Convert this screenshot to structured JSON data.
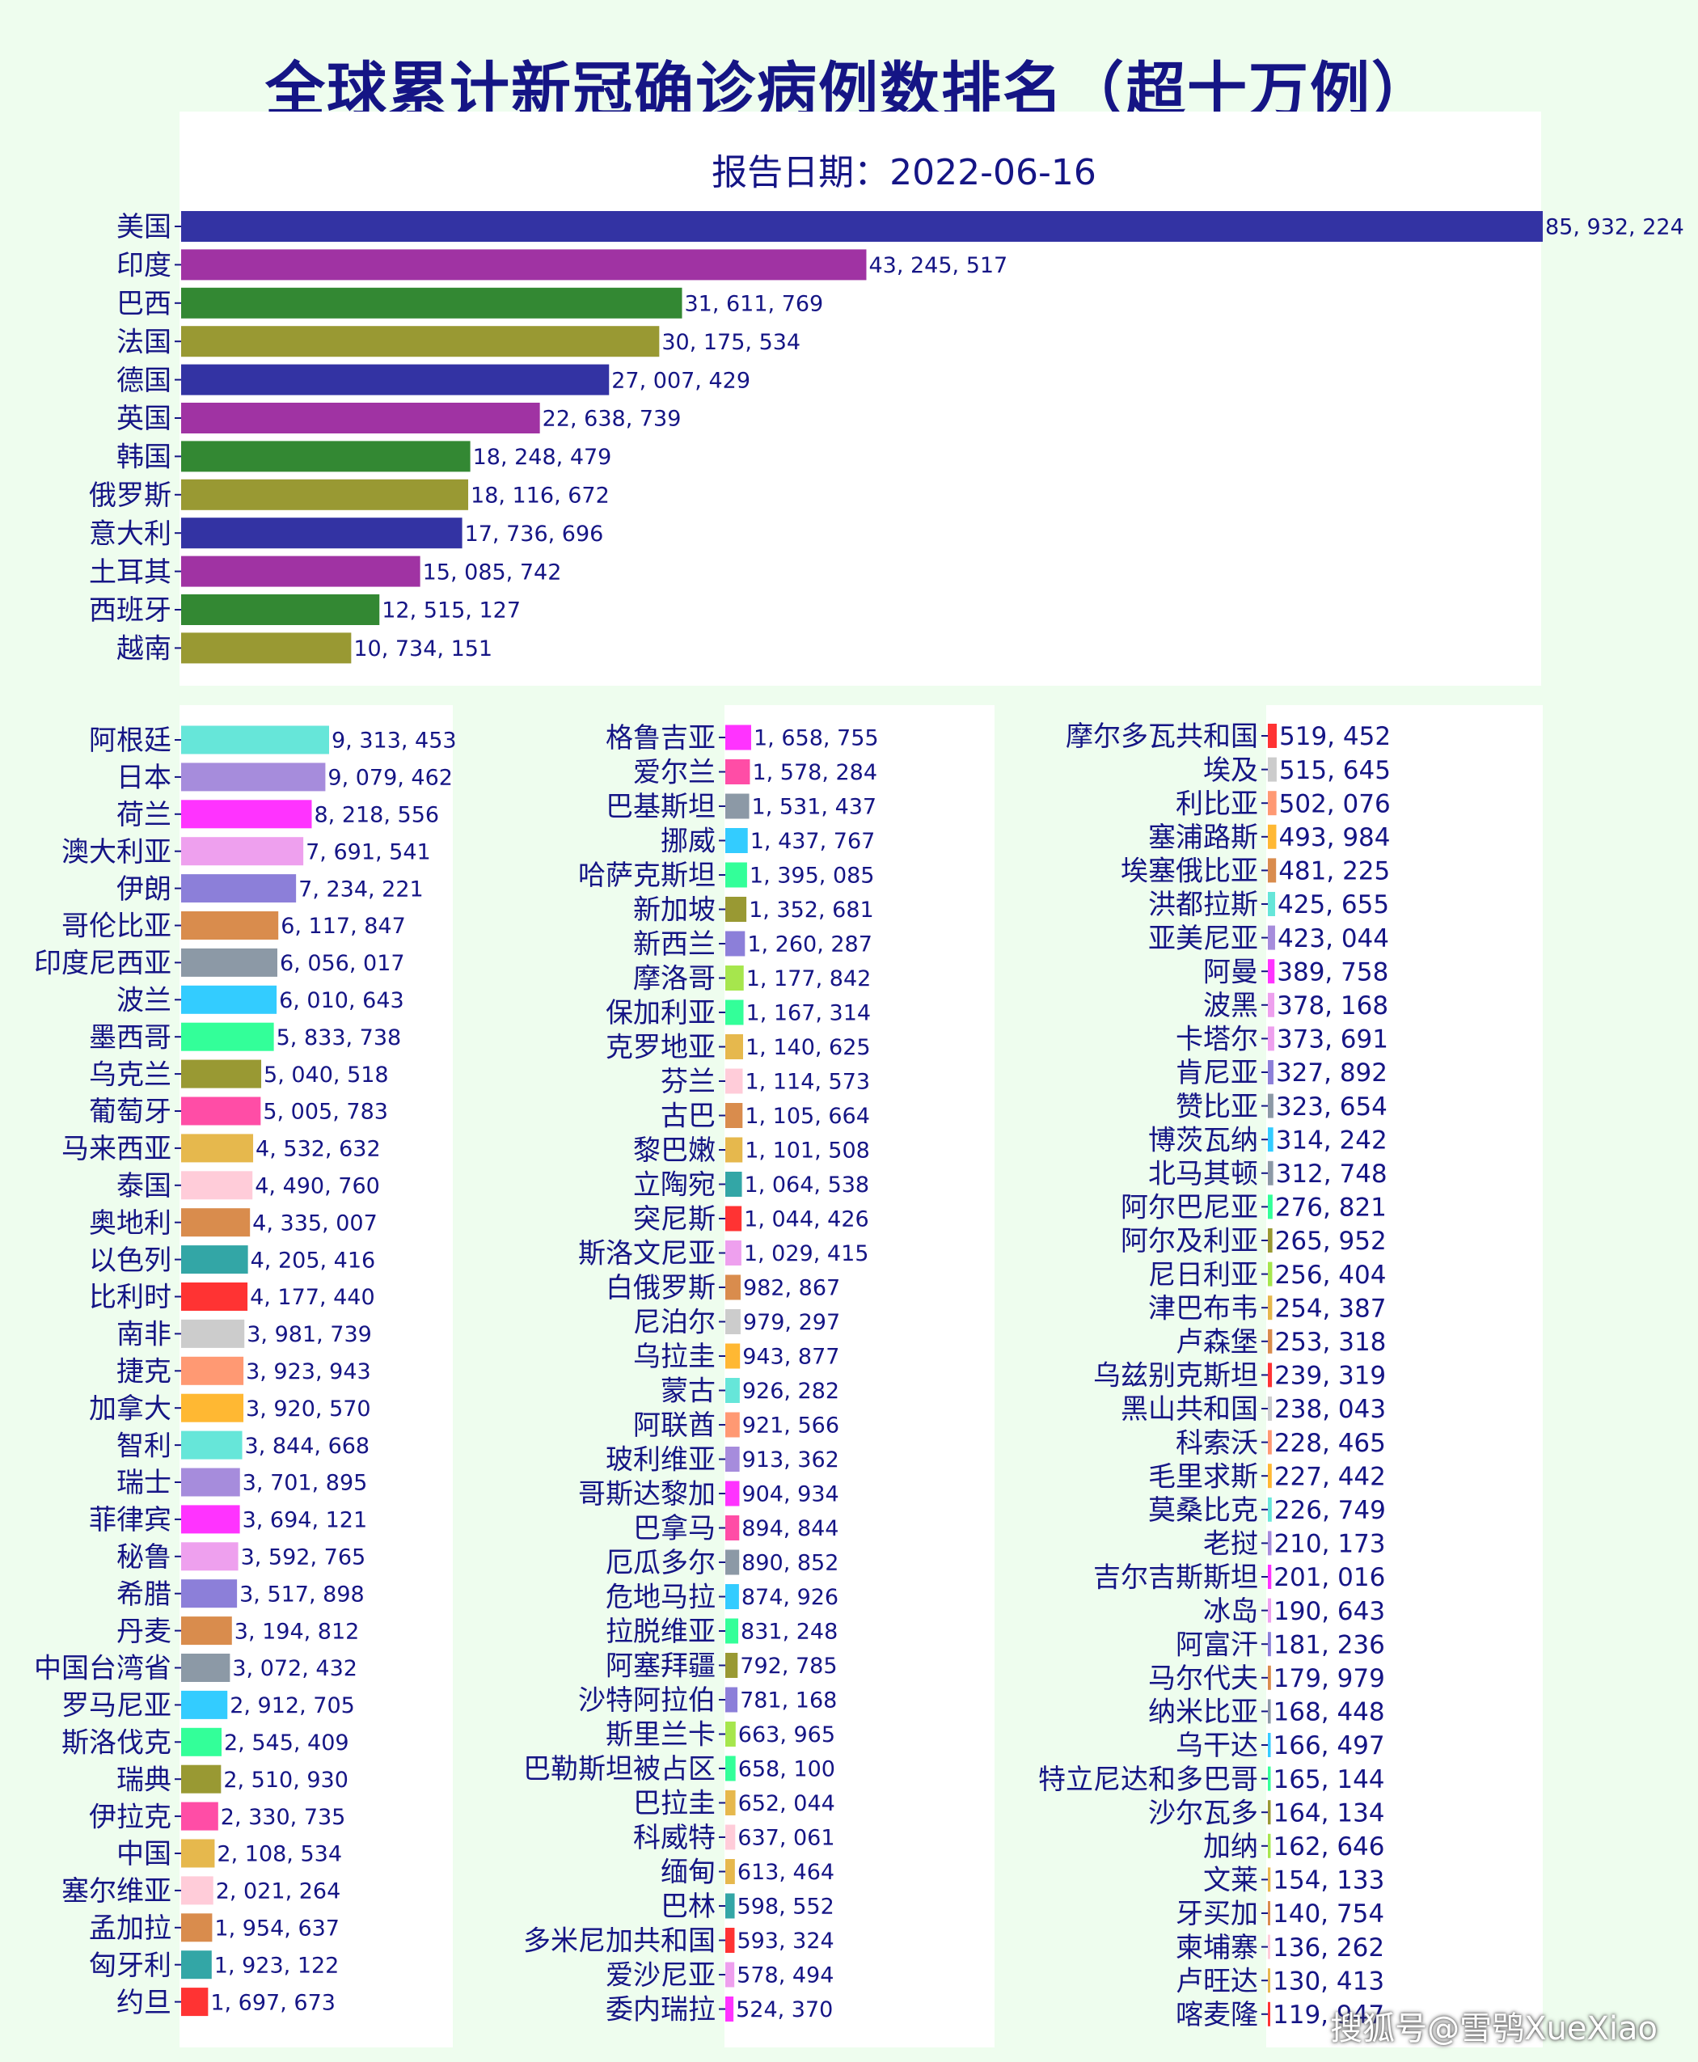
{
  "title": "全球累计新冠确诊病例数排名（超十万例）",
  "watermark": "搜狐号@雪鸮XueXiao",
  "chart_data": [
    {
      "type": "bar",
      "orientation": "horizontal",
      "subtitle": "报告日期：2022-06-16",
      "colors": [
        "#3333a3",
        "#a033a3",
        "#338833",
        "#999933"
      ],
      "categories": [
        "美国",
        "印度",
        "巴西",
        "法国",
        "德国",
        "英国",
        "韩国",
        "俄罗斯",
        "意大利",
        "土耳其",
        "西班牙",
        "越南"
      ],
      "values": [
        85932224,
        43245517,
        31611769,
        30175534,
        27007429,
        22638739,
        18248479,
        18116672,
        17736696,
        15085742,
        12515127,
        10734151
      ],
      "value_labels": [
        "85, 932, 224",
        "43, 245, 517",
        "31, 611, 769",
        "30, 175, 534",
        "27, 007, 429",
        "22, 638, 739",
        "18, 248, 479",
        "18, 116, 672",
        "17, 736, 696",
        "15, 085, 742",
        "12, 515, 127",
        "10, 734, 151"
      ]
    },
    {
      "type": "bar",
      "orientation": "horizontal",
      "colors": [
        "#66e6d9",
        "#a68cdc",
        "#ff33ff",
        "#eea0ee",
        "#8c7fd9",
        "#d98c4d",
        "#8c99a6",
        "#33ccff",
        "#33ff99",
        "#999933",
        "#ff4da6",
        "#e6b84d",
        "#ffccd9",
        "#d98c4d",
        "#33a6a6",
        "#ff3333",
        "#cccccc",
        "#ff9973",
        "#ffb833"
      ],
      "categories": [
        "阿根廷",
        "日本",
        "荷兰",
        "澳大利亚",
        "伊朗",
        "哥伦比亚",
        "印度尼西亚",
        "波兰",
        "墨西哥",
        "乌克兰",
        "葡萄牙",
        "马来西亚",
        "泰国",
        "奥地利",
        "以色列",
        "比利时",
        "南非",
        "捷克",
        "加拿大",
        "智利",
        "瑞士",
        "菲律宾",
        "秘鲁",
        "希腊",
        "丹麦",
        "中国台湾省",
        "罗马尼亚",
        "斯洛伐克",
        "瑞典",
        "伊拉克",
        "中国",
        "塞尔维亚",
        "孟加拉",
        "匈牙利",
        "约旦"
      ],
      "values": [
        9313453,
        9079462,
        8218556,
        7691541,
        7234221,
        6117847,
        6056017,
        6010643,
        5833738,
        5040518,
        5005783,
        4532632,
        4490760,
        4335007,
        4205416,
        4177440,
        3981739,
        3923943,
        3920570,
        3844668,
        3701895,
        3694121,
        3592765,
        3517898,
        3194812,
        3072432,
        2912705,
        2545409,
        2510930,
        2330735,
        2108534,
        2021264,
        1954637,
        1923122,
        1697673
      ],
      "value_labels": [
        "9, 313, 453",
        "9, 079, 462",
        "8, 218, 556",
        "7, 691, 541",
        "7, 234, 221",
        "6, 117, 847",
        "6, 056, 017",
        "6, 010, 643",
        "5, 833, 738",
        "5, 040, 518",
        "5, 005, 783",
        "4, 532, 632",
        "4, 490, 760",
        "4, 335, 007",
        "4, 205, 416",
        "4, 177, 440",
        "3, 981, 739",
        "3, 923, 943",
        "3, 920, 570",
        "3, 844, 668",
        "3, 701, 895",
        "3, 694, 121",
        "3, 592, 765",
        "3, 517, 898",
        "3, 194, 812",
        "3, 072, 432",
        "2, 912, 705",
        "2, 545, 409",
        "2, 510, 930",
        "2, 330, 735",
        "2, 108, 534",
        "2, 021, 264",
        "1, 954, 637",
        "1, 923, 122",
        "1, 697, 673"
      ]
    },
    {
      "type": "bar",
      "orientation": "horizontal",
      "colors": [
        "#ff33ff",
        "#ff4da6",
        "#8c99a6",
        "#33ccff",
        "#33ff99",
        "#999933",
        "#8c7fd9",
        "#a6e64d",
        "#33ff99",
        "#e6b84d",
        "#ffccd9",
        "#d98c4d",
        "#e6b84d",
        "#33a6a6",
        "#ff3333",
        "#eea0ee",
        "#d98c4d",
        "#cccccc",
        "#ffb833",
        "#66e6d9",
        "#ff9973",
        "#a68cdc",
        "#ff33ff",
        "#ff4da6",
        "#8c99a6",
        "#33ccff",
        "#33ff99",
        "#999933",
        "#8c7fd9",
        "#a6e64d",
        "#33ff99",
        "#e6b84d",
        "#ffccd9",
        "#e6b84d",
        "#33a6a6",
        "#ff3333",
        "#eea0ee"
      ],
      "categories": [
        "格鲁吉亚",
        "爱尔兰",
        "巴基斯坦",
        "挪威",
        "哈萨克斯坦",
        "新加坡",
        "新西兰",
        "摩洛哥",
        "保加利亚",
        "克罗地亚",
        "芬兰",
        "古巴",
        "黎巴嫩",
        "立陶宛",
        "突尼斯",
        "斯洛文尼亚",
        "白俄罗斯",
        "尼泊尔",
        "乌拉圭",
        "蒙古",
        "阿联酋",
        "玻利维亚",
        "哥斯达黎加",
        "巴拿马",
        "厄瓜多尔",
        "危地马拉",
        "拉脱维亚",
        "阿塞拜疆",
        "沙特阿拉伯",
        "斯里兰卡",
        "巴勒斯坦被占区",
        "巴拉圭",
        "科威特",
        "缅甸",
        "巴林",
        "多米尼加共和国",
        "爱沙尼亚",
        "委内瑞拉"
      ],
      "values": [
        1658755,
        1578284,
        1531437,
        1437767,
        1395085,
        1352681,
        1260287,
        1177842,
        1167314,
        1140625,
        1114573,
        1105664,
        1101508,
        1064538,
        1044426,
        1029415,
        982867,
        979297,
        943877,
        926282,
        921566,
        913362,
        904934,
        894844,
        890852,
        874926,
        831248,
        792785,
        781168,
        663965,
        658100,
        652044,
        637061,
        613464,
        598552,
        593324,
        578494,
        524370
      ],
      "value_labels": [
        "1, 658, 755",
        "1, 578, 284",
        "1, 531, 437",
        "1, 437, 767",
        "1, 395, 085",
        "1, 352, 681",
        "1, 260, 287",
        "1, 177, 842",
        "1, 167, 314",
        "1, 140, 625",
        "1, 114, 573",
        "1, 105, 664",
        "1, 101, 508",
        "1, 064, 538",
        "1, 044, 426",
        "1, 029, 415",
        "982, 867",
        "979, 297",
        "943, 877",
        "926, 282",
        "921, 566",
        "913, 362",
        "904, 934",
        "894, 844",
        "890, 852",
        "874, 926",
        "831, 248",
        "792, 785",
        "781, 168",
        "663, 965",
        "658, 100",
        "652, 044",
        "637, 061",
        "613, 464",
        "598, 552",
        "593, 324",
        "578, 494",
        "524, 370"
      ]
    },
    {
      "type": "bar",
      "orientation": "horizontal",
      "colors": [
        "#ff3333",
        "#cccccc",
        "#ff9973",
        "#ffb833",
        "#d98c4d",
        "#66e6d9",
        "#a68cdc",
        "#ff33ff",
        "#eea0ee",
        "#eea0ee",
        "#8c7fd9",
        "#8c99a6",
        "#33ccff",
        "#8c99a6",
        "#33ff99",
        "#999933",
        "#a6e64d",
        "#e6b84d",
        "#d98c4d",
        "#ff3333",
        "#cccccc",
        "#ff9973",
        "#ffb833",
        "#66e6d9",
        "#a68cdc",
        "#ff33ff",
        "#eea0ee",
        "#8c7fd9",
        "#d98c4d",
        "#8c99a6",
        "#33ccff",
        "#33ff99",
        "#999933",
        "#a6e64d",
        "#e6b84d",
        "#d98c4d",
        "#ffccd9",
        "#e6b84d",
        "#ff3333",
        "#eea0ee"
      ],
      "categories": [
        "摩尔多瓦共和国",
        "埃及",
        "利比亚",
        "塞浦路斯",
        "埃塞俄比亚",
        "洪都拉斯",
        "亚美尼亚",
        "阿曼",
        "波黑",
        "卡塔尔",
        "肯尼亚",
        "赞比亚",
        "博茨瓦纳",
        "北马其顿",
        "阿尔巴尼亚",
        "阿尔及利亚",
        "尼日利亚",
        "津巴布韦",
        "卢森堡",
        "乌兹别克斯坦",
        "黑山共和国",
        "科索沃",
        "毛里求斯",
        "莫桑比克",
        "老挝",
        "吉尔吉斯斯坦",
        "冰岛",
        "阿富汗",
        "马尔代夫",
        "纳米比亚",
        "乌干达",
        "特立尼达和多巴哥",
        "沙尔瓦多",
        "加纳",
        "文莱",
        "牙买加",
        "柬埔寨",
        "卢旺达",
        "喀麦隆"
      ],
      "values": [
        519452,
        515645,
        502076,
        493984,
        481225,
        425655,
        423044,
        389758,
        378168,
        373691,
        327892,
        323654,
        314242,
        312748,
        276821,
        265952,
        256404,
        254387,
        253318,
        239319,
        238043,
        228465,
        227442,
        226749,
        210173,
        201016,
        190643,
        181236,
        179979,
        168448,
        166497,
        165144,
        164134,
        162646,
        154133,
        140754,
        136262,
        130413,
        119947
      ],
      "value_labels": [
        "519, 452",
        "515, 645",
        "502, 076",
        "493, 984",
        "481, 225",
        "425, 655",
        "423, 044",
        "389, 758",
        "378, 168",
        "373, 691",
        "327, 892",
        "323, 654",
        "314, 242",
        "312, 748",
        "276, 821",
        "265, 952",
        "256, 404",
        "254, 387",
        "253, 318",
        "239, 319",
        "238, 043",
        "228, 465",
        "227, 442",
        "226, 749",
        "210, 173",
        "201, 016",
        "190, 643",
        "181, 236",
        "179, 979",
        "168, 448",
        "166, 497",
        "165, 144",
        "164, 134",
        "162, 646",
        "154, 133",
        "140, 754",
        "136, 262",
        "130, 413",
        "119, 947"
      ]
    }
  ]
}
